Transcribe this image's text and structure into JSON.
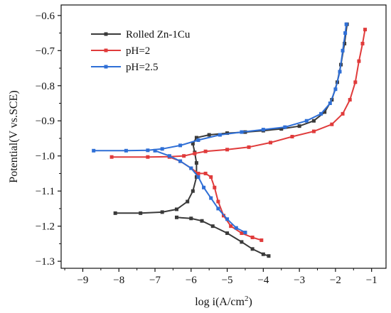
{
  "chart_data": {
    "type": "line",
    "xlabel": "log i(A/cm",
    "xlabel_sup": "2",
    "xlabel_end": ")",
    "ylabel": "Potential(V vs.SCE)",
    "xlim": [
      -9.6,
      -0.6
    ],
    "ylim": [
      -1.32,
      -0.57
    ],
    "x_ticks": [
      -9,
      -8,
      -7,
      -6,
      -5,
      -4,
      -3,
      -2,
      -1
    ],
    "x_tick_labels": [
      "−9",
      "−8",
      "−7",
      "−6",
      "−5",
      "−4",
      "−3",
      "−2",
      "−1"
    ],
    "y_ticks": [
      -0.6,
      -0.7,
      -0.8,
      -0.9,
      -1.0,
      -1.1,
      -1.2,
      -1.3
    ],
    "y_tick_labels": [
      "−0.6",
      "−0.7",
      "−0.8",
      "−0.9",
      "−1.0",
      "−1.1",
      "−1.2",
      "−1.3"
    ],
    "legend_position": "top-left",
    "series": [
      {
        "name": "Rolled Zn-1Cu",
        "color": "#3a3a3a",
        "points": [
          [
            -8.1,
            -1.163
          ],
          [
            -7.4,
            -1.163
          ],
          [
            -6.8,
            -1.16
          ],
          [
            -6.4,
            -1.152
          ],
          [
            -6.1,
            -1.13
          ],
          [
            -5.95,
            -1.1
          ],
          [
            -5.85,
            -1.06
          ],
          [
            -5.85,
            -1.02
          ],
          [
            -5.9,
            -0.99
          ],
          [
            -5.95,
            -0.965
          ],
          [
            -5.85,
            -0.948
          ],
          [
            -5.5,
            -0.94
          ],
          [
            -5.0,
            -0.935
          ],
          [
            -4.5,
            -0.932
          ],
          [
            -4.0,
            -0.928
          ],
          [
            -3.5,
            -0.923
          ],
          [
            -3.0,
            -0.915
          ],
          [
            -2.6,
            -0.9
          ],
          [
            -2.3,
            -0.875
          ],
          [
            -2.1,
            -0.84
          ],
          [
            -1.95,
            -0.79
          ],
          [
            -1.85,
            -0.74
          ],
          [
            -1.75,
            -0.68
          ],
          [
            -1.68,
            -0.625
          ]
        ],
        "points_cathodic": [
          [
            -6.4,
            -1.175
          ],
          [
            -6.0,
            -1.178
          ],
          [
            -5.7,
            -1.185
          ],
          [
            -5.4,
            -1.2
          ],
          [
            -5.0,
            -1.22
          ],
          [
            -4.6,
            -1.245
          ],
          [
            -4.3,
            -1.265
          ],
          [
            -4.0,
            -1.28
          ],
          [
            -3.85,
            -1.285
          ]
        ]
      },
      {
        "name": "pH=2",
        "color": "#e03b3b",
        "points": [
          [
            -8.2,
            -1.003
          ],
          [
            -7.2,
            -1.003
          ],
          [
            -6.6,
            -1.002
          ],
          [
            -6.2,
            -1.0
          ],
          [
            -5.9,
            -0.993
          ],
          [
            -5.6,
            -0.987
          ],
          [
            -5.0,
            -0.982
          ],
          [
            -4.4,
            -0.975
          ],
          [
            -3.8,
            -0.962
          ],
          [
            -3.2,
            -0.945
          ],
          [
            -2.6,
            -0.93
          ],
          [
            -2.1,
            -0.91
          ],
          [
            -1.8,
            -0.88
          ],
          [
            -1.6,
            -0.84
          ],
          [
            -1.45,
            -0.79
          ],
          [
            -1.35,
            -0.73
          ],
          [
            -1.25,
            -0.68
          ],
          [
            -1.18,
            -0.64
          ]
        ],
        "points_cathodic": [
          [
            -6.6,
            -1.003
          ],
          [
            -6.3,
            -1.015
          ],
          [
            -6.0,
            -1.035
          ],
          [
            -5.8,
            -1.05
          ],
          [
            -5.6,
            -1.05
          ],
          [
            -5.45,
            -1.06
          ],
          [
            -5.35,
            -1.09
          ],
          [
            -5.25,
            -1.13
          ],
          [
            -5.1,
            -1.17
          ],
          [
            -4.9,
            -1.2
          ],
          [
            -4.6,
            -1.22
          ],
          [
            -4.3,
            -1.232
          ],
          [
            -4.05,
            -1.24
          ]
        ]
      },
      {
        "name": "pH=2.5",
        "color": "#2f6fd6",
        "points": [
          [
            -8.7,
            -0.985
          ],
          [
            -7.8,
            -0.985
          ],
          [
            -7.2,
            -0.984
          ],
          [
            -6.8,
            -0.98
          ],
          [
            -6.3,
            -0.97
          ],
          [
            -5.8,
            -0.955
          ],
          [
            -5.2,
            -0.94
          ],
          [
            -4.6,
            -0.932
          ],
          [
            -4.0,
            -0.925
          ],
          [
            -3.4,
            -0.918
          ],
          [
            -2.8,
            -0.9
          ],
          [
            -2.4,
            -0.88
          ],
          [
            -2.15,
            -0.85
          ],
          [
            -2.0,
            -0.81
          ],
          [
            -1.88,
            -0.76
          ],
          [
            -1.8,
            -0.7
          ],
          [
            -1.73,
            -0.65
          ],
          [
            -1.7,
            -0.625
          ]
        ],
        "points_cathodic": [
          [
            -7.0,
            -0.985
          ],
          [
            -6.6,
            -1.0
          ],
          [
            -6.3,
            -1.015
          ],
          [
            -6.0,
            -1.035
          ],
          [
            -5.8,
            -1.06
          ],
          [
            -5.65,
            -1.09
          ],
          [
            -5.45,
            -1.12
          ],
          [
            -5.25,
            -1.15
          ],
          [
            -5.0,
            -1.18
          ],
          [
            -4.75,
            -1.205
          ],
          [
            -4.5,
            -1.218
          ]
        ]
      }
    ]
  }
}
